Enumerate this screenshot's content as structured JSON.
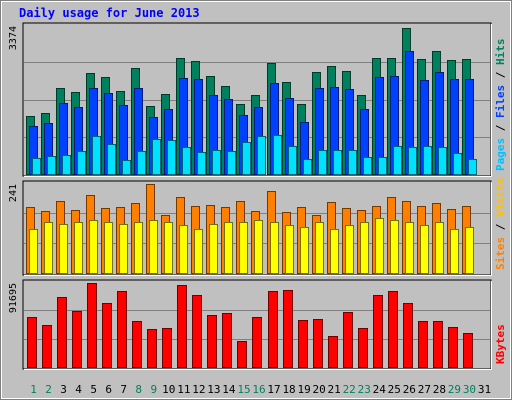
{
  "chart_data": {
    "type": "bar",
    "title": "Daily usage for June 2013",
    "categories": [
      "1",
      "2",
      "3",
      "4",
      "5",
      "6",
      "7",
      "8",
      "9",
      "10",
      "11",
      "12",
      "13",
      "14",
      "15",
      "16",
      "17",
      "18",
      "19",
      "20",
      "21",
      "22",
      "23",
      "24",
      "25",
      "26",
      "27",
      "28",
      "29",
      "30",
      "31"
    ],
    "weekend_days": [
      "1",
      "2",
      "8",
      "9",
      "15",
      "16",
      "22",
      "23",
      "29",
      "30"
    ],
    "panels": [
      {
        "name": "hits-files-pages",
        "max_label": "3374",
        "ymax": 3374,
        "axis_legend": [
          {
            "text": "Pages",
            "color": "#00c0ff"
          },
          {
            "text": " / ",
            "color": "#000000"
          },
          {
            "text": "Files",
            "color": "#0040ff"
          },
          {
            "text": " / ",
            "color": "#000000"
          },
          {
            "text": "Hits",
            "color": "#00805c"
          }
        ],
        "series": [
          {
            "name": "Hits",
            "color": "#00805c",
            "values": [
              1330,
              1400,
              1960,
              1890,
              2300,
              2210,
              1910,
              2430,
              1560,
              1840,
              2650,
              2590,
              2240,
              2020,
              1610,
              1810,
              2530,
              2110,
              1600,
              2340,
              2460,
              2350,
              1810,
              2640,
              2640,
              3340,
              2630,
              2800,
              2610,
              2630,
              null
            ]
          },
          {
            "name": "Files",
            "color": "#0040ff",
            "values": [
              1120,
              1170,
              1620,
              1550,
              1970,
              1850,
              1580,
              1980,
              1320,
              1500,
              2200,
              2170,
              1820,
              1710,
              1360,
              1530,
              2080,
              1750,
              1210,
              1980,
              1990,
              1940,
              1500,
              2230,
              2240,
              2810,
              2150,
              2340,
              2170,
              2180,
              null
            ]
          },
          {
            "name": "Pages",
            "color": "#00e0ff",
            "values": [
              380,
              420,
              460,
              540,
              880,
              710,
              330,
              540,
              810,
              790,
              640,
              520,
              560,
              540,
              740,
              880,
              910,
              650,
              360,
              570,
              570,
              560,
              400,
              410,
              650,
              630,
              660,
              640,
              490,
              370,
              null
            ]
          }
        ]
      },
      {
        "name": "visits-sites",
        "max_label": "241",
        "ymax": 241,
        "axis_legend": [
          {
            "text": "Sites",
            "color": "#ff8000"
          },
          {
            "text": " / ",
            "color": "#000000"
          },
          {
            "text": "Visits",
            "color": "#ffc000"
          }
        ],
        "series": [
          {
            "name": "Visits",
            "color": "#ff8000",
            "values": [
              180,
              170,
              195,
              172,
              212,
              177,
              180,
              190,
              241,
              157,
              207,
              183,
              185,
              180,
              195,
              170,
              222,
              165,
              180,
              157,
              192,
              178,
              172,
              181,
              207,
              195,
              182,
              190,
              173,
              182,
              null
            ]
          },
          {
            "name": "Sites",
            "color": "#ffff00",
            "values": [
              120,
              140,
              135,
              140,
              145,
              140,
              135,
              140,
              145,
              140,
              130,
              120,
              135,
              140,
              140,
              145,
              140,
              130,
              125,
              140,
              120,
              130,
              140,
              150,
              145,
              140,
              130,
              140,
              120,
              125,
              null
            ]
          }
        ]
      },
      {
        "name": "kbytes",
        "max_label": "91695",
        "ymax": 91695,
        "axis_legend": [
          {
            "text": "KBytes",
            "color": "#ff0000"
          }
        ],
        "series": [
          {
            "name": "KBytes",
            "color": "#ff0000",
            "values": [
              55000,
              46500,
              77000,
              61000,
              91500,
              70000,
              83000,
              50500,
              42000,
              43000,
              89000,
              79000,
              57500,
              59000,
              29000,
              55000,
              83000,
              84000,
              52000,
              53000,
              34000,
              60000,
              43000,
              79000,
              83000,
              70000,
              51000,
              51000,
              44000,
              38000,
              null
            ]
          }
        ]
      }
    ]
  }
}
